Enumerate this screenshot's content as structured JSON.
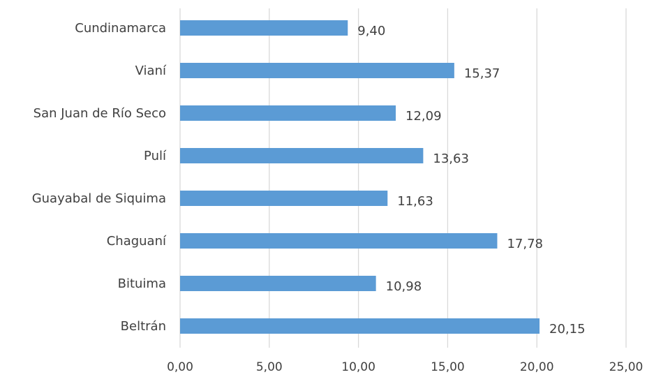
{
  "chart_data": {
    "type": "bar",
    "orientation": "horizontal",
    "categories": [
      "Cundinamarca",
      "Vianí",
      "San Juan de Río Seco",
      "Pulí",
      "Guayabal de Siquima",
      "Chaguaní",
      "Bituima",
      "Beltrán"
    ],
    "values": [
      9.4,
      15.37,
      12.09,
      13.63,
      11.63,
      17.78,
      10.98,
      20.15
    ],
    "value_labels": [
      "9,40",
      "15,37",
      "12,09",
      "13,63",
      "11,63",
      "17,78",
      "10,98",
      "20,15"
    ],
    "xlim": [
      0,
      25
    ],
    "ticks": [
      0,
      5,
      10,
      15,
      20,
      25
    ],
    "tick_labels": [
      "0,00",
      "5,00",
      "10,00",
      "15,00",
      "20,00",
      "25,00"
    ],
    "grid": true,
    "bar_color": "#5b9bd5",
    "title": "",
    "xlabel": "",
    "ylabel": ""
  }
}
